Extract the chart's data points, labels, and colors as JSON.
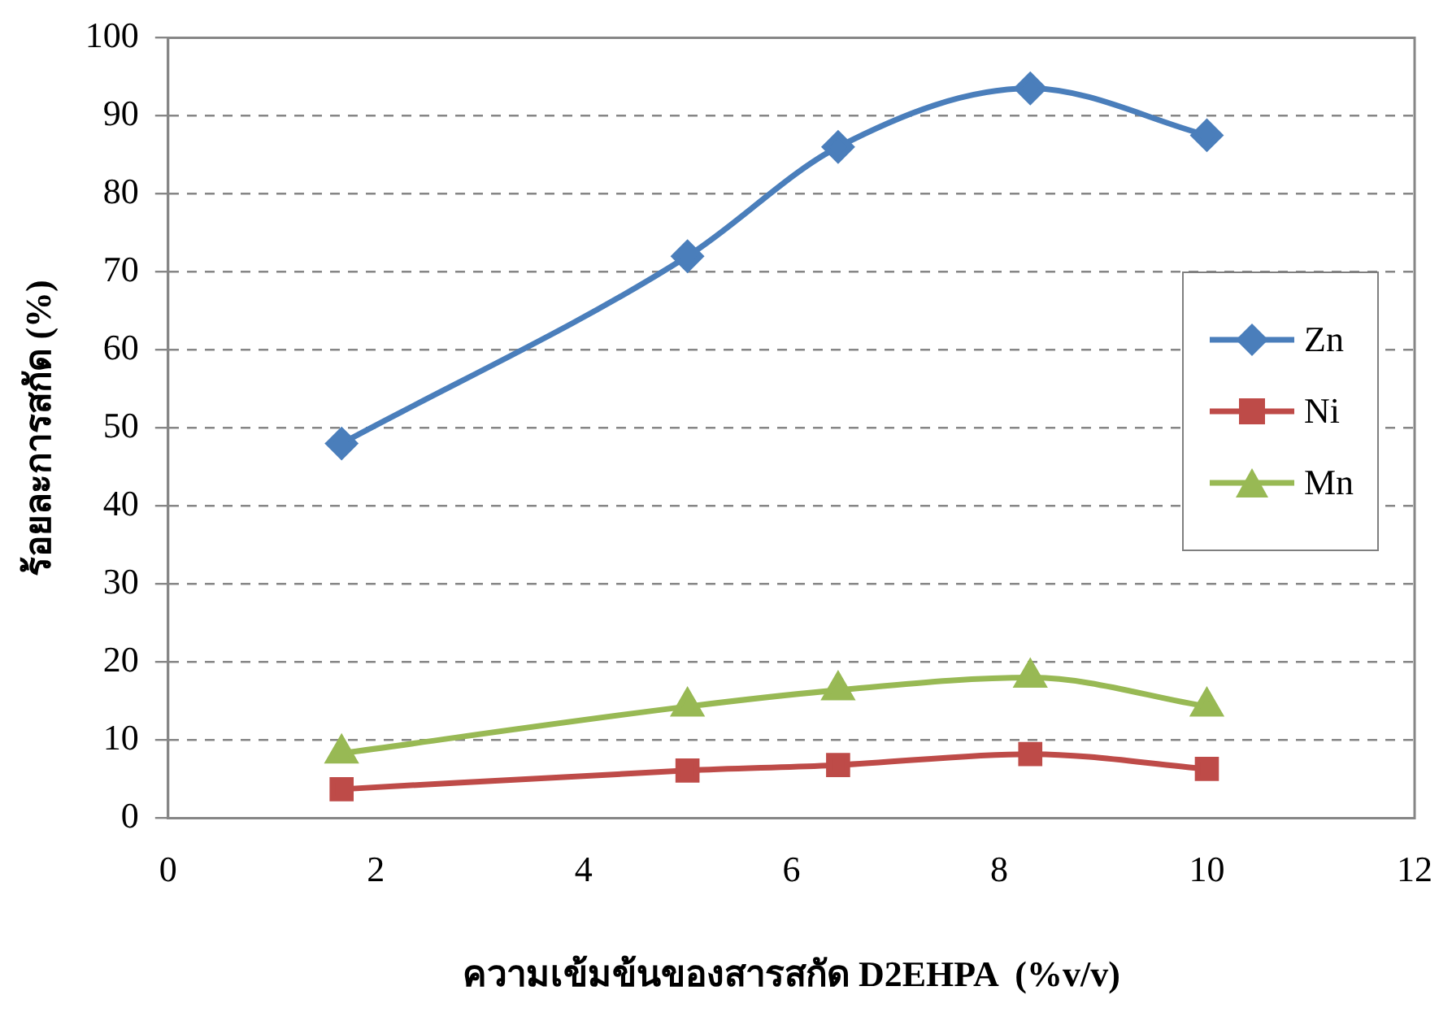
{
  "chart_data": {
    "type": "line",
    "xlabel": "ความเข้มข้นของสารสกัด D2EHPA  (%v/v)",
    "ylabel": "ร้อยละการสกัด (%)",
    "x": [
      1.67,
      5,
      6.45,
      8.3,
      10
    ],
    "series": [
      {
        "name": "Zn",
        "color": "#4a7ebb",
        "marker": "diamond",
        "values": [
          48,
          72,
          86,
          93.5,
          87.5
        ]
      },
      {
        "name": "Ni",
        "color": "#be4b48",
        "marker": "square",
        "values": [
          3.7,
          6.1,
          6.8,
          8.2,
          6.3
        ]
      },
      {
        "name": "Mn",
        "color": "#98b954",
        "marker": "triangle",
        "values": [
          8.3,
          14.3,
          16.4,
          18,
          14.3
        ]
      }
    ],
    "xlim": [
      0,
      12
    ],
    "xticks": [
      0,
      2,
      4,
      6,
      8,
      10,
      12
    ],
    "ylim": [
      0,
      100
    ],
    "yticks": [
      0,
      10,
      20,
      30,
      40,
      50,
      60,
      70,
      80,
      90,
      100
    ],
    "grid": "y",
    "legend": "right"
  }
}
